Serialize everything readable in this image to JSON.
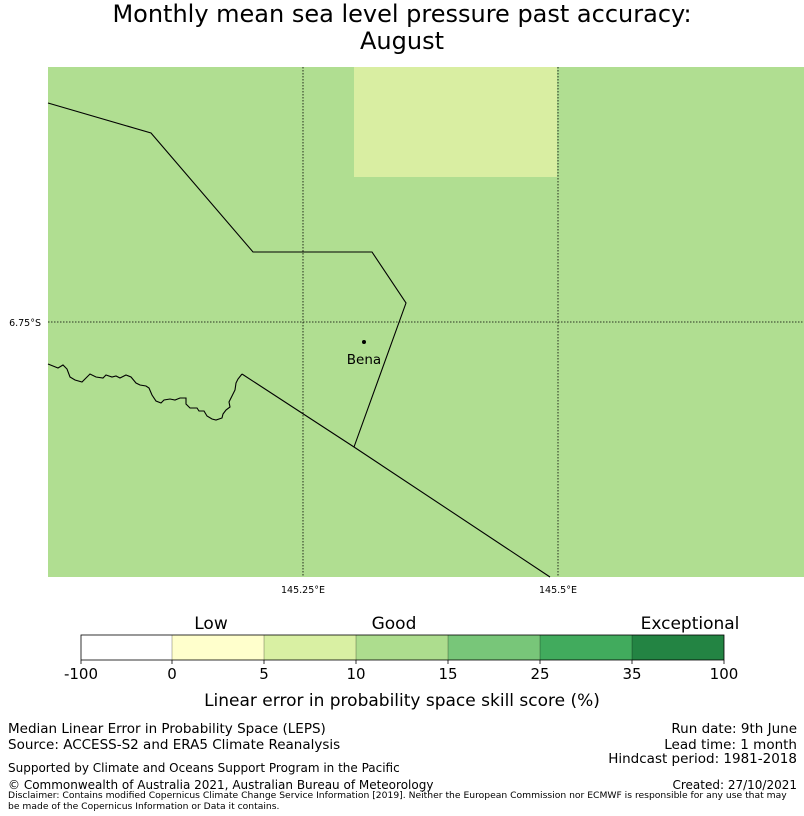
{
  "title": {
    "line1": "Monthly mean sea level pressure past accuracy:",
    "line2": "August"
  },
  "map": {
    "lat_label": "6.75°S",
    "lon_labels": [
      "145.25°E",
      "145.5°E"
    ],
    "place": "Bena",
    "colors": {
      "base": "#b0de91",
      "light": "#d9eea2"
    }
  },
  "legend": {
    "categories": [
      "Low",
      "Good",
      "Exceptional"
    ],
    "ticks": [
      "-100",
      "0",
      "5",
      "10",
      "15",
      "25",
      "35",
      "100"
    ],
    "colors": [
      "#ffffff",
      "#ffffcc",
      "#d9f0a3",
      "#addd8e",
      "#78c679",
      "#41ab5d",
      "#238443"
    ],
    "label": "Linear error in probability space skill score (%)"
  },
  "footer": {
    "left1": "Median Linear Error in Probability Space (LEPS)",
    "left2": "Source: ACCESS-S2 and ERA5 Climate Reanalysis",
    "left3": "Supported by Climate and Oceans Support Program in the Pacific",
    "left4": "© Commonwealth of Australia 2021, Australian Bureau of Meteorology",
    "right1": "Run date: 9th June",
    "right2": "Lead time: 1 month",
    "right3": "Hindcast period: 1981-2018",
    "right4": "Created: 27/10/2021",
    "disclaimer": "Disclaimer: Contains modified Copernicus Climate Change Service Information [2019]. Neither the European Commission nor ECMWF is responsible for any use that may be made of the Copernicus Information or Data it contains."
  }
}
